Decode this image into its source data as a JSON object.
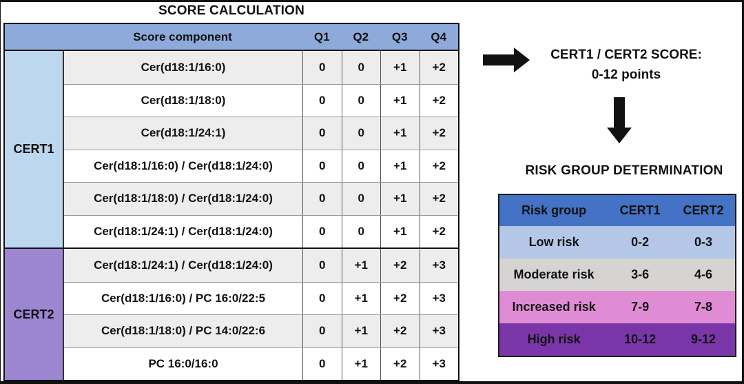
{
  "left_panel": {
    "title": "SCORE CALCULATION",
    "table": {
      "header": {
        "component_label": "Score component",
        "quartiles": [
          "Q1",
          "Q2",
          "Q3",
          "Q4"
        ]
      },
      "groups": [
        {
          "label": "CERT1",
          "color": "#BDD7EE",
          "rows": [
            {
              "component": "Cer(d18:1/16:0)",
              "scores": [
                "0",
                "0",
                "+1",
                "+2"
              ]
            },
            {
              "component": "Cer(d18:1/18:0)",
              "scores": [
                "0",
                "0",
                "+1",
                "+2"
              ]
            },
            {
              "component": "Cer(d18:1/24:1)",
              "scores": [
                "0",
                "0",
                "+1",
                "+2"
              ]
            },
            {
              "component": "Cer(d18:1/16:0) / Cer(d18:1/24:0)",
              "scores": [
                "0",
                "0",
                "+1",
                "+2"
              ]
            },
            {
              "component": "Cer(d18:1/18:0) / Cer(d18:1/24:0)",
              "scores": [
                "0",
                "0",
                "+1",
                "+2"
              ]
            },
            {
              "component": "Cer(d18:1/24:1) / Cer(d18:1/24:0)",
              "scores": [
                "0",
                "0",
                "+1",
                "+2"
              ]
            }
          ]
        },
        {
          "label": "CERT2",
          "color": "#9C85D1",
          "rows": [
            {
              "component": "Cer(d18:1/24:1) / Cer(d18:1/24:0)",
              "scores": [
                "0",
                "+1",
                "+2",
                "+3"
              ]
            },
            {
              "component": "Cer(d18:1/16:0) / PC 16:0/22:5",
              "scores": [
                "0",
                "+1",
                "+2",
                "+3"
              ]
            },
            {
              "component": "Cer(d18:1/18:0) / PC 14:0/22:6",
              "scores": [
                "0",
                "+1",
                "+2",
                "+3"
              ]
            },
            {
              "component": "PC 16:0/16:0",
              "scores": [
                "0",
                "+1",
                "+2",
                "+3"
              ]
            }
          ]
        }
      ]
    }
  },
  "right_panel": {
    "score_summary": {
      "line1": "CERT1 / CERT2 SCORE:",
      "line2": "0-12 points"
    },
    "risk_title": "RISK GROUP DETERMINATION",
    "risk_table": {
      "headers": [
        "Risk group",
        "CERT1",
        "CERT2"
      ],
      "rows": [
        {
          "group": "Low risk",
          "cert1": "0-2",
          "cert2": "0-3",
          "color": "#B4C7E7"
        },
        {
          "group": "Moderate risk",
          "cert1": "3-6",
          "cert2": "4-6",
          "color": "#D6D3D3"
        },
        {
          "group": "Increased risk",
          "cert1": "7-9",
          "cert2": "7-8",
          "color": "#E08CD4"
        },
        {
          "group": "High risk",
          "cert1": "10-12",
          "cert2": "9-12",
          "color": "#7A36A9"
        }
      ]
    }
  },
  "icons": {
    "flow_right": "right-arrow",
    "flow_down": "down-arrow"
  },
  "colors": {
    "score_header_bg": "#8EAADB",
    "row_stripe": "#EDEDED",
    "row_plain": "#FFFFFF",
    "risk_header_bg": "#4472C4",
    "cert1_bg": "#BDD7EE",
    "cert2_bg": "#9C85D1",
    "arrow_color": "#111111"
  }
}
